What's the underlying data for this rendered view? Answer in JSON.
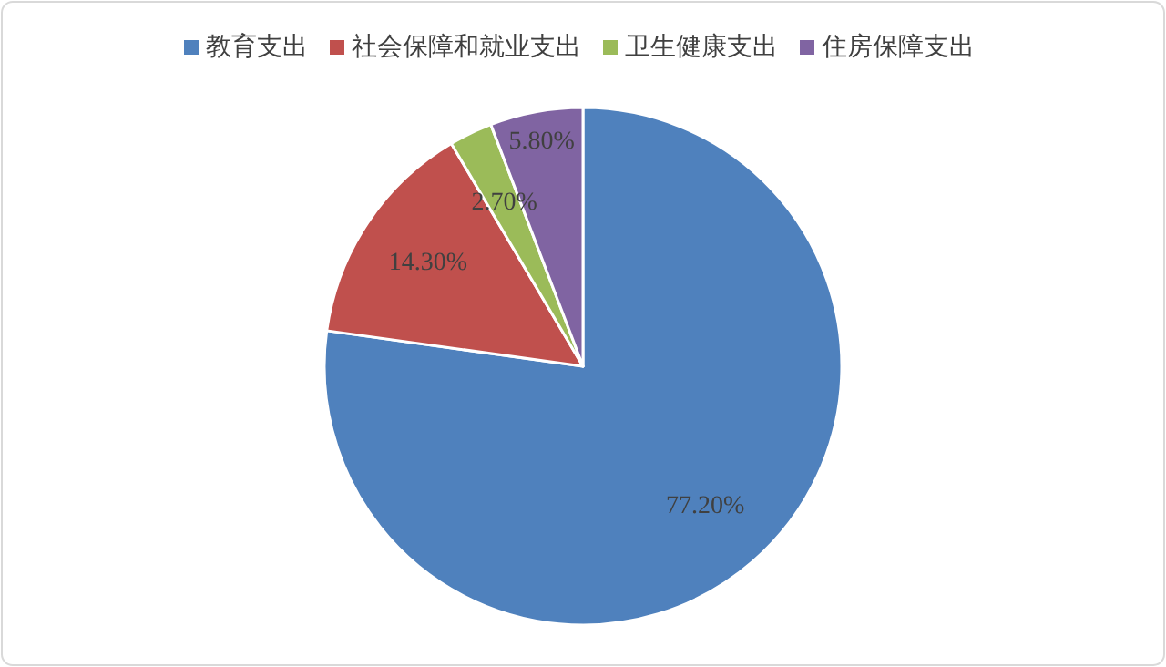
{
  "chart_data": {
    "type": "pie",
    "categories": [
      "教育支出",
      "社会保障和就业支出",
      "卫生健康支出",
      "住房保障支出"
    ],
    "values": [
      77.2,
      14.3,
      2.7,
      5.8
    ],
    "colors": [
      "#4f81bd",
      "#c0504d",
      "#9bbb59",
      "#8064a2"
    ],
    "value_labels": [
      "77.20%",
      "14.30%",
      "2.70%",
      "5.80%"
    ],
    "legend": "top"
  }
}
